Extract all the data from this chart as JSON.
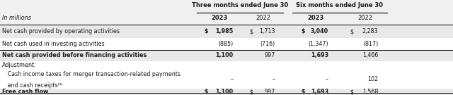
{
  "title_left": "In millions",
  "col_header_1": "Three months ended June 30",
  "col_header_2": "Six months ended June 30",
  "years": [
    "2023",
    "2022",
    "2023",
    "2022"
  ],
  "year_bold": [
    true,
    false,
    true,
    false
  ],
  "rows": [
    {
      "label": "Net cash provided by operating activities",
      "dollar_signs": [
        true,
        true,
        true,
        true
      ],
      "values": [
        "1,985",
        "1,713",
        "3,040",
        "2,283"
      ],
      "val_bold": [
        true,
        false,
        true,
        false
      ],
      "bold": false,
      "bg": "#e8e8e8"
    },
    {
      "label": "Net cash used in investing activities",
      "dollar_signs": [
        false,
        false,
        false,
        false
      ],
      "values": [
        "(885)",
        "(716)",
        "(1,347)",
        "(817)"
      ],
      "val_bold": [
        false,
        false,
        false,
        false
      ],
      "bold": false,
      "bg": "#ffffff"
    },
    {
      "label": "Net cash provided before financing activities",
      "dollar_signs": [
        false,
        false,
        false,
        false
      ],
      "values": [
        "1,100",
        "997",
        "1,693",
        "1,466"
      ],
      "val_bold": [
        true,
        false,
        true,
        false
      ],
      "bold": true,
      "bg": "#e8e8e8"
    },
    {
      "label": "Adjustment:",
      "dollar_signs": [
        false,
        false,
        false,
        false
      ],
      "values": [
        "",
        "",
        "",
        ""
      ],
      "val_bold": [
        false,
        false,
        false,
        false
      ],
      "bold": false,
      "bg": "#ffffff",
      "label_only": true
    },
    {
      "label_line1": "   Cash income taxes for merger transaction-related payments",
      "label_line2": "   and cash receipts⁽¹⁾",
      "dollar_signs": [
        false,
        false,
        false,
        false
      ],
      "values": [
        "–",
        "–",
        "–",
        "102"
      ],
      "val_bold": [
        false,
        false,
        false,
        false
      ],
      "bold": false,
      "bg": "#ffffff",
      "multiline": true
    },
    {
      "label": "Free cash flow",
      "dollar_signs": [
        true,
        true,
        true,
        true
      ],
      "values": [
        "1,100",
        "997",
        "1,693",
        "1,568"
      ],
      "val_bold": [
        true,
        false,
        true,
        false
      ],
      "bold": true,
      "bg": "#e8e8e8"
    }
  ],
  "fig_width": 6.4,
  "fig_height": 1.35,
  "dpi": 100,
  "bg_color": "#f5f5f5",
  "text_color": "#1a1a1a",
  "font_size": 5.8,
  "header_font_size": 6.0
}
